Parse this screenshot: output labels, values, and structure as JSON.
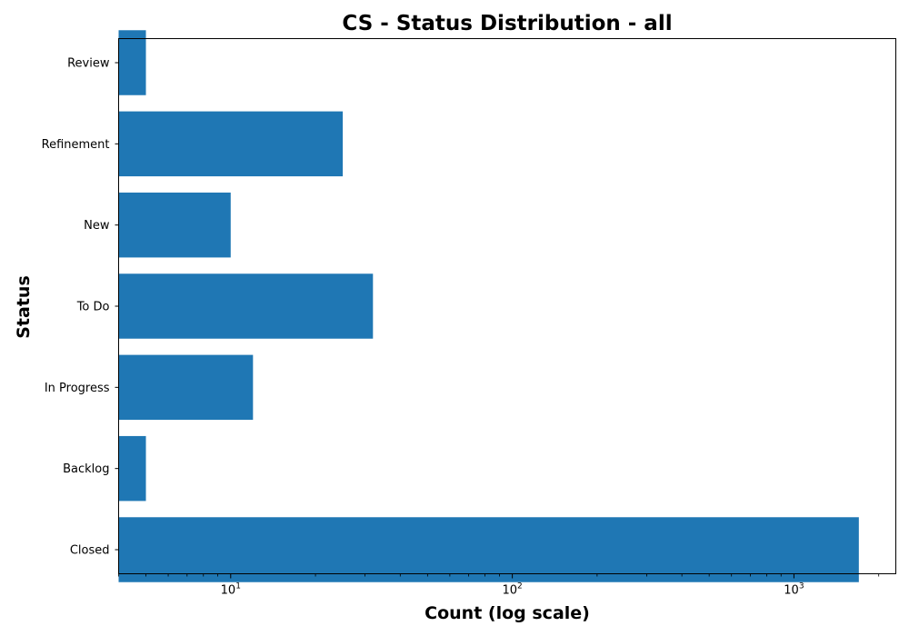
{
  "chart_data": {
    "type": "bar",
    "orientation": "horizontal",
    "title": "CS - Status Distribution - all",
    "xlabel": "Count (log scale)",
    "ylabel": "Status",
    "x_scale": "log",
    "xlim": [
      4,
      2300
    ],
    "categories": [
      "Closed",
      "Backlog",
      "In Progress",
      "To Do",
      "New",
      "Refinement",
      "Review"
    ],
    "values": [
      1700,
      5,
      12,
      32,
      10,
      25,
      5
    ],
    "x_ticks": [
      {
        "value": 10,
        "base": "10",
        "exp": "1"
      },
      {
        "value": 100,
        "base": "10",
        "exp": "2"
      },
      {
        "value": 1000,
        "base": "10",
        "exp": "3"
      }
    ],
    "bar_color": "#1f77b4",
    "grid": false,
    "legend": "none"
  }
}
